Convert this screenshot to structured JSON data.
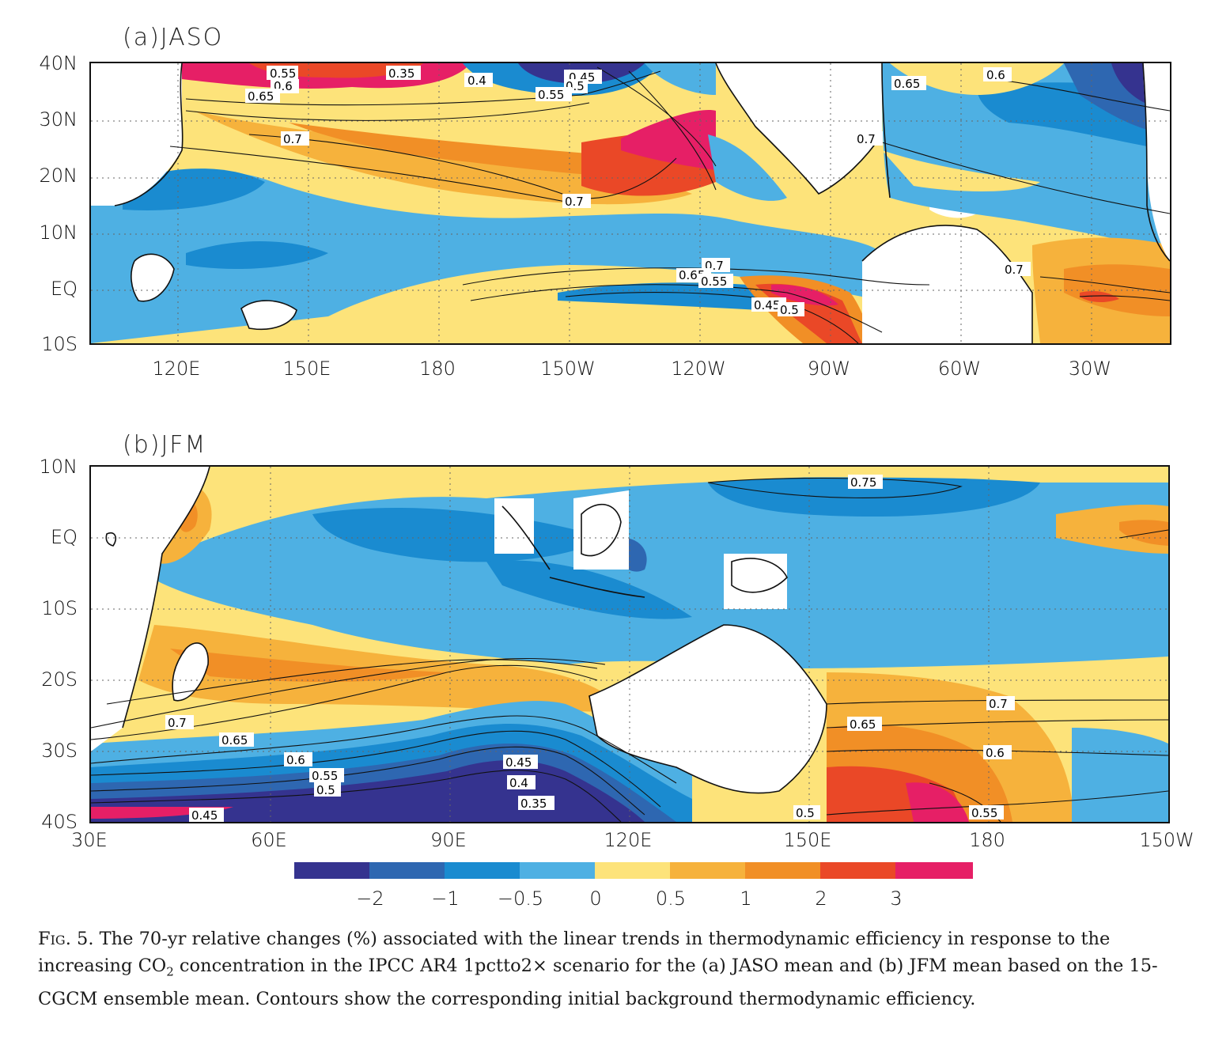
{
  "panel_a": {
    "title": "(a)JASO",
    "lat_labels": [
      "40N",
      "30N",
      "20N",
      "10N",
      "EQ",
      "10S"
    ],
    "lon_labels": [
      "120E",
      "150E",
      "180",
      "150W",
      "120W",
      "90W",
      "60W",
      "30W"
    ],
    "contour_labels": [
      "0.55",
      "0.6",
      "0.65",
      "0.35",
      "0.4",
      "0.45",
      "0.5",
      "0.55",
      "0.65",
      "0.6",
      "0.7",
      "0.7",
      "0.7",
      "0.7",
      "0.65",
      "0.55",
      "0.45",
      "0.5",
      "0.7"
    ]
  },
  "panel_b": {
    "title": "(b)JFM",
    "lat_labels": [
      "10N",
      "EQ",
      "10S",
      "20S",
      "30S",
      "40S"
    ],
    "lon_labels": [
      "30E",
      "60E",
      "90E",
      "120E",
      "150E",
      "180",
      "150W"
    ],
    "contour_labels": [
      "0.75",
      "0.7",
      "0.65",
      "0.6",
      "0.55",
      "0.5",
      "0.45",
      "0.45",
      "0.4",
      "0.35",
      "0.5",
      "0.7",
      "0.65",
      "0.6",
      "0.55"
    ]
  },
  "colorbar": {
    "labels": [
      "−2",
      "−1",
      "−0.5",
      "0",
      "0.5",
      "1",
      "2",
      "3"
    ],
    "colors": [
      "#35338f",
      "#2e67b1",
      "#1a8bd0",
      "#4eb0e3",
      "#fde37a",
      "#f6b23c",
      "#f18f26",
      "#ea4827",
      "#e61f66"
    ]
  },
  "caption": {
    "fig_label": "Fig. 5.",
    "text_1": "The 70-yr relative changes (%) associated with the linear trends in thermodynamic efficiency in response to the increasing CO",
    "subscript": "2",
    "text_2": " concentration in the IPCC AR4 1pctto2× scenario for the (a) JASO mean and (b) JFM mean based on the 15-CGCM ensemble mean. Contours show the corresponding initial background thermodynamic efficiency."
  }
}
